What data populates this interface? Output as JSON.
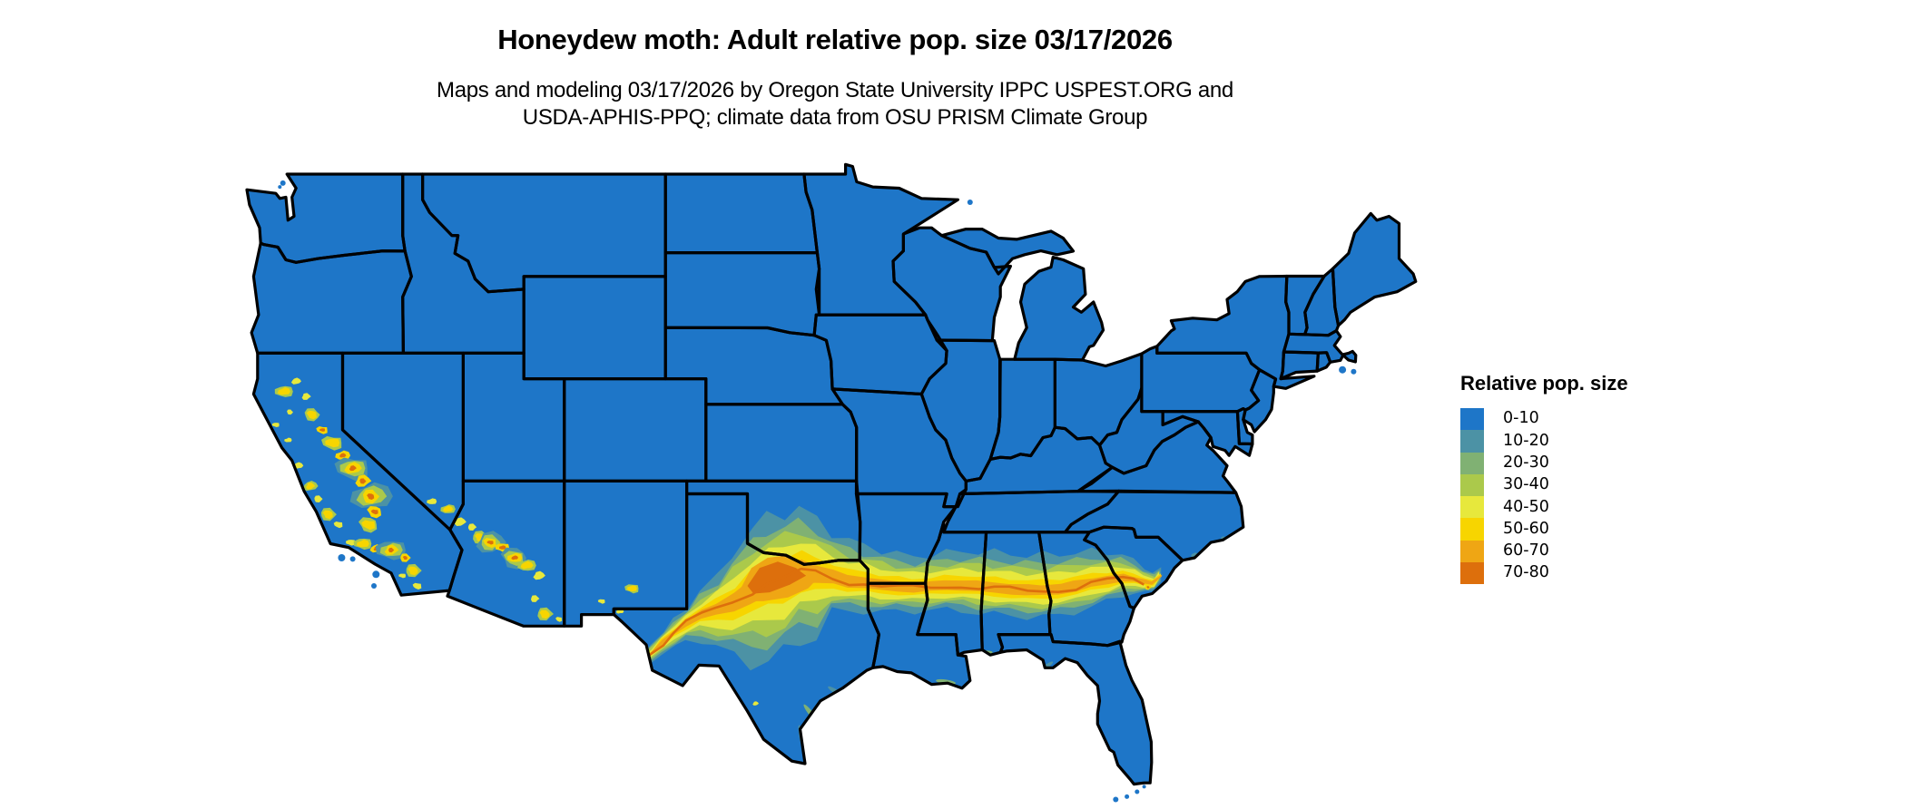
{
  "header": {
    "title": "Honeydew moth: Adult relative pop. size 03/17/2026",
    "subtitle_line1": "Maps and modeling 03/17/2026 by Oregon State University IPPC USPEST.ORG and",
    "subtitle_line2": "USDA-APHIS-PPQ; climate data from OSU PRISM Climate Group"
  },
  "legend": {
    "title": "Relative pop. size",
    "items": [
      {
        "label": "0-10",
        "color": "#1e76c8"
      },
      {
        "label": "10-20",
        "color": "#4c92a5"
      },
      {
        "label": "20-30",
        "color": "#80b173"
      },
      {
        "label": "30-40",
        "color": "#abc94b"
      },
      {
        "label": "40-50",
        "color": "#e7e83c"
      },
      {
        "label": "50-60",
        "color": "#f7d500"
      },
      {
        "label": "60-70",
        "color": "#efa614"
      },
      {
        "label": "70-80",
        "color": "#dd6f0c"
      }
    ]
  },
  "map": {
    "region": "Contiguous United States",
    "background_color": "#ffffff",
    "water_color": "#ffffff",
    "land_default_bin": "0-10",
    "border_color": "#000000"
  }
}
